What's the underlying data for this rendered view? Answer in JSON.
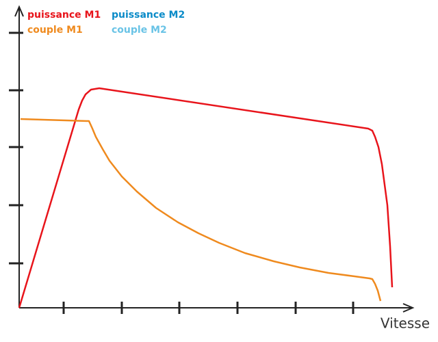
{
  "chart_data": {
    "type": "line",
    "x_label": "Vitesse",
    "xlim": [
      0,
      575
    ],
    "ylim": [
      0,
      440
    ],
    "xticks": [
      65,
      150,
      234,
      319,
      404,
      488
    ],
    "yticks": [
      65,
      150,
      235,
      318,
      402
    ],
    "series": [
      {
        "name": "puissance M1",
        "color": "#e8141b",
        "x": [
          0,
          87,
          92,
          97,
          105,
          117,
          510,
          516,
          520,
          525,
          530,
          534,
          538,
          542,
          545
        ],
        "values": [
          0,
          290,
          303,
          312,
          319,
          321,
          262,
          259,
          250,
          235,
          210,
          180,
          150,
          90,
          30
        ]
      },
      {
        "name": "puissance M2",
        "color": "#0a8bc8",
        "x": [],
        "values": []
      },
      {
        "name": "couple M1",
        "color": "#ef8a1e",
        "x": [
          2,
          102,
          107,
          112,
          122,
          132,
          150,
          172,
          200,
          232,
          262,
          292,
          330,
          372,
          410,
          452,
          490,
          512,
          516,
          520,
          524,
          528
        ],
        "values": [
          276,
          273,
          262,
          250,
          232,
          215,
          192,
          170,
          146,
          125,
          109,
          95,
          80,
          68,
          59,
          51,
          46,
          43,
          42,
          35,
          25,
          10
        ]
      },
      {
        "name": "couple M2",
        "color": "#69c3e6",
        "x": [],
        "values": []
      }
    ]
  }
}
